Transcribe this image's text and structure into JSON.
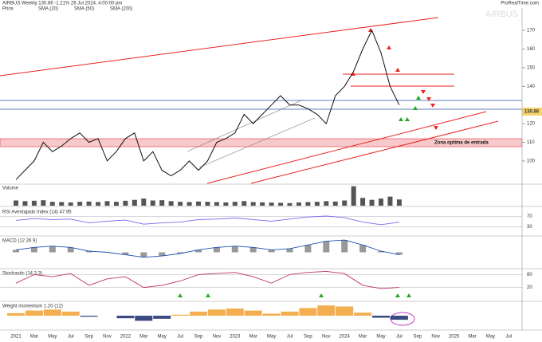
{
  "chart_data": {
    "type": "line",
    "title": "AIRBUS Weekly 130.86 -1.21% 26 Jul 2024, 4:00:00 pm",
    "legend": [
      "Price",
      "SMA (20)",
      "SMA (50)",
      "SMA (200)"
    ],
    "watermark": "AIRBUS",
    "brand": "ProRealTime.com",
    "annotation": "Zona optima de entrada",
    "last_price": "130.86",
    "x_labels": [
      "2021",
      "Mar",
      "May",
      "Jul",
      "Sep",
      "Nov",
      "2022",
      "Mar",
      "May",
      "Jul",
      "Sep",
      "Nov",
      "2023",
      "Mar",
      "May",
      "Jul",
      "Sep",
      "Nov",
      "2024",
      "Mar",
      "May",
      "Jul",
      "Sep",
      "Nov",
      "2025",
      "Mar",
      "May",
      "Jul"
    ],
    "ylim": [
      88,
      182
    ],
    "yticks": [
      100,
      110,
      120,
      140,
      150,
      160,
      170
    ],
    "series": [
      {
        "name": "Price",
        "color": "#111111",
        "values": [
          90,
          95,
          100,
          110,
          105,
          108,
          112,
          115,
          110,
          112,
          100,
          105,
          112,
          115,
          100,
          105,
          95,
          92,
          95,
          100,
          95,
          100,
          110,
          112,
          115,
          125,
          120,
          125,
          130,
          135,
          130,
          130,
          128,
          125,
          120,
          135,
          140,
          148,
          160,
          170,
          158,
          140,
          130
        ]
      }
    ],
    "volume": {
      "title": "Volume",
      "color": "#555555",
      "ylim": [
        0,
        160
      ],
      "values": [
        40,
        35,
        38,
        42,
        30,
        28,
        25,
        30,
        32,
        28,
        35,
        30,
        38,
        45,
        55,
        40,
        42,
        35,
        30,
        28,
        32,
        30,
        28,
        25,
        30,
        35,
        28,
        26,
        24,
        22,
        20,
        25,
        28,
        30,
        35,
        32,
        40,
        150,
        60,
        45,
        55,
        70,
        48
      ]
    },
    "rsi": {
      "title": "RSI Aventajado Index (14) 47.95",
      "color": "#7b68ee",
      "ylim": [
        0,
        100
      ],
      "yticks": [
        30,
        70
      ],
      "values": [
        55,
        62,
        58,
        60,
        45,
        52,
        56,
        40,
        45,
        48,
        58,
        60,
        64,
        58,
        52,
        60,
        68,
        72,
        66,
        48,
        38,
        47.95
      ]
    },
    "macd": {
      "title": "MACD (12 26 9)",
      "color": "#1f4fb5",
      "ylim": [
        -6,
        6
      ],
      "values": [
        1,
        2,
        2.5,
        2,
        0.5,
        0,
        -1,
        -2,
        -1.5,
        -0.5,
        1,
        2,
        2.5,
        2,
        1,
        1.5,
        3,
        4.5,
        5,
        3,
        0.5,
        -1
      ]
    },
    "stochastic": {
      "title": "Stochastic (14 3 3)",
      "color": "#c0306a",
      "ylim": [
        0,
        100
      ],
      "yticks": [
        20,
        80
      ],
      "values": [
        40,
        80,
        70,
        85,
        30,
        60,
        70,
        20,
        30,
        50,
        80,
        85,
        90,
        70,
        40,
        80,
        90,
        95,
        85,
        30,
        15,
        20
      ]
    },
    "momentum": {
      "title": "Weight momentum 1.20 (12)",
      "color": "#f0a030",
      "negative_color": "#1a2a6c",
      "ylim": [
        -25,
        25
      ],
      "values": [
        5,
        10,
        12,
        8,
        -2,
        0,
        -5,
        -10,
        -6,
        2,
        8,
        12,
        14,
        10,
        4,
        8,
        15,
        20,
        18,
        6,
        -4,
        -8
      ]
    }
  }
}
